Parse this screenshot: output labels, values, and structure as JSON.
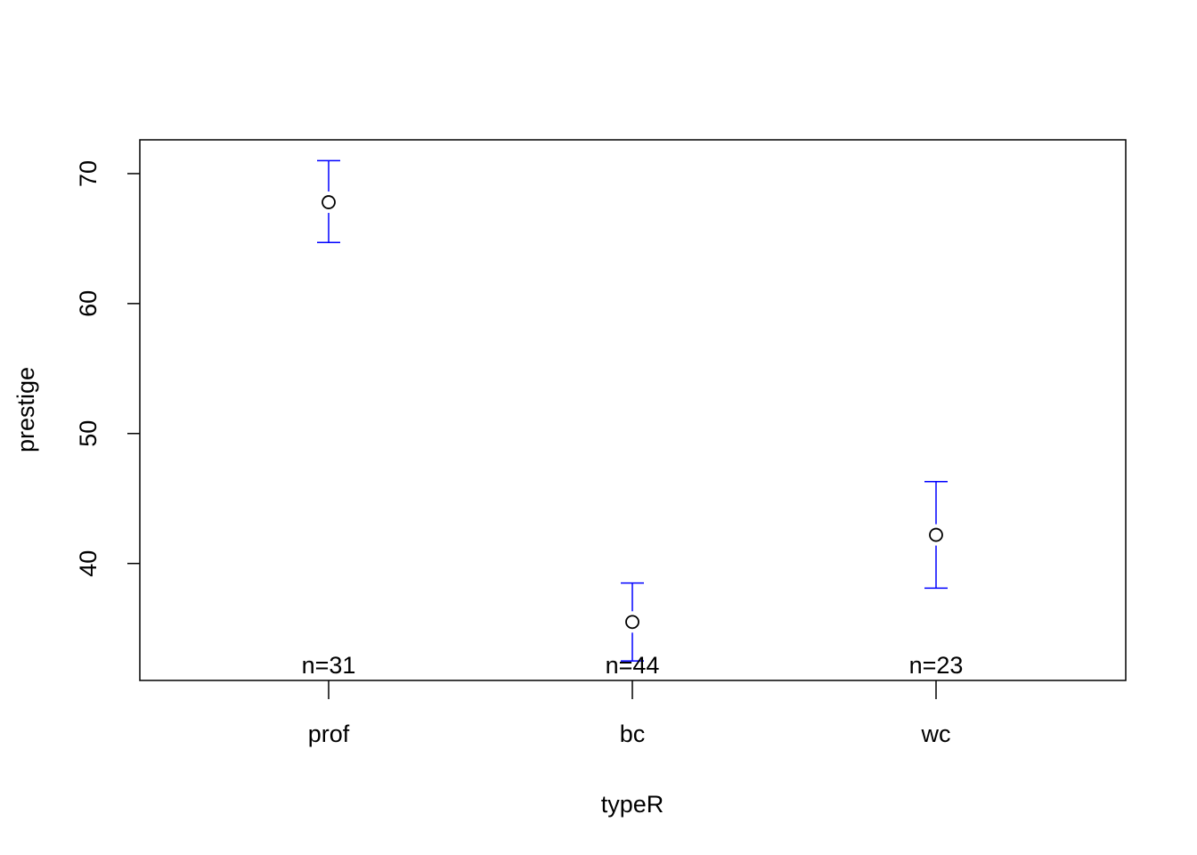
{
  "chart_data": {
    "type": "scatter",
    "subtype": "means-with-error-bars",
    "title": "",
    "xlabel": "typeR",
    "ylabel": "prestige",
    "categories": [
      "prof",
      "bc",
      "wc"
    ],
    "series": [
      {
        "means": [
          67.8,
          35.5,
          42.2
        ],
        "upper": [
          71.0,
          38.5,
          46.3
        ],
        "lower": [
          64.7,
          32.5,
          38.1
        ],
        "counts": [
          "n=31",
          "n=44",
          "n=23"
        ]
      }
    ],
    "yticks": [
      40,
      50,
      60,
      70
    ],
    "ylim": [
      31,
      72.6
    ],
    "grid": false,
    "legend": "none",
    "colors": {
      "point": "#000000",
      "error_bar": "#0000ff",
      "axis": "#000000"
    }
  }
}
